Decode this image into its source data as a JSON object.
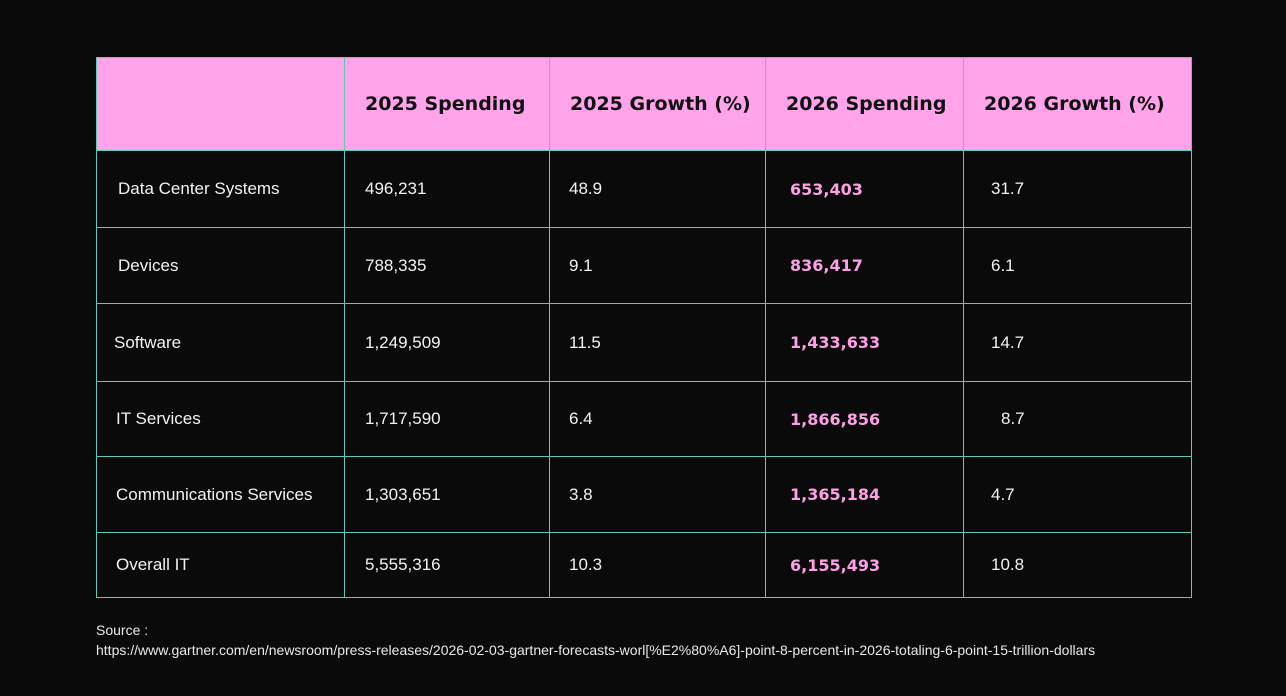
{
  "table": {
    "headers": [
      "",
      "2025 Spending",
      "2025 Growth (%)",
      "2026 Spending",
      "2026 Growth (%)"
    ],
    "rows": [
      {
        "category": "Data Center Systems",
        "spend_2025": "496,231",
        "growth_2025": "48.9",
        "spend_2026": "653,403",
        "growth_2026": "31.7"
      },
      {
        "category": "Devices",
        "spend_2025": "788,335",
        "growth_2025": "9.1",
        "spend_2026": "836,417",
        "growth_2026": "6.1"
      },
      {
        "category": "Software",
        "spend_2025": "1,249,509",
        "growth_2025": "11.5",
        "spend_2026": "1,433,633",
        "growth_2026": "14.7"
      },
      {
        "category": "IT Services",
        "spend_2025": "1,717,590",
        "growth_2025": "6.4",
        "spend_2026": "1,866,856",
        "growth_2026": "8.7"
      },
      {
        "category": "Communications Services",
        "spend_2025": "1,303,651",
        "growth_2025": "3.8",
        "spend_2026": "1,365,184",
        "growth_2026": "4.7"
      },
      {
        "category": "Overall IT",
        "spend_2025": "5,555,316",
        "growth_2025": "10.3",
        "spend_2026": "6,155,493",
        "growth_2026": "10.8"
      }
    ]
  },
  "source": {
    "label": "Source :",
    "url": "https://www.gartner.com/en/newsroom/press-releases/2026-02-03-gartner-forecasts-worl[%E2%80%A6]-point-8-percent-in-2026-totaling-6-point-15-trillion-dollars"
  },
  "colors": {
    "background": "#0a0a0a",
    "header_bg": "#ffa3ea",
    "border": "#5ec9b6",
    "highlight_text": "#ff9fe6"
  }
}
